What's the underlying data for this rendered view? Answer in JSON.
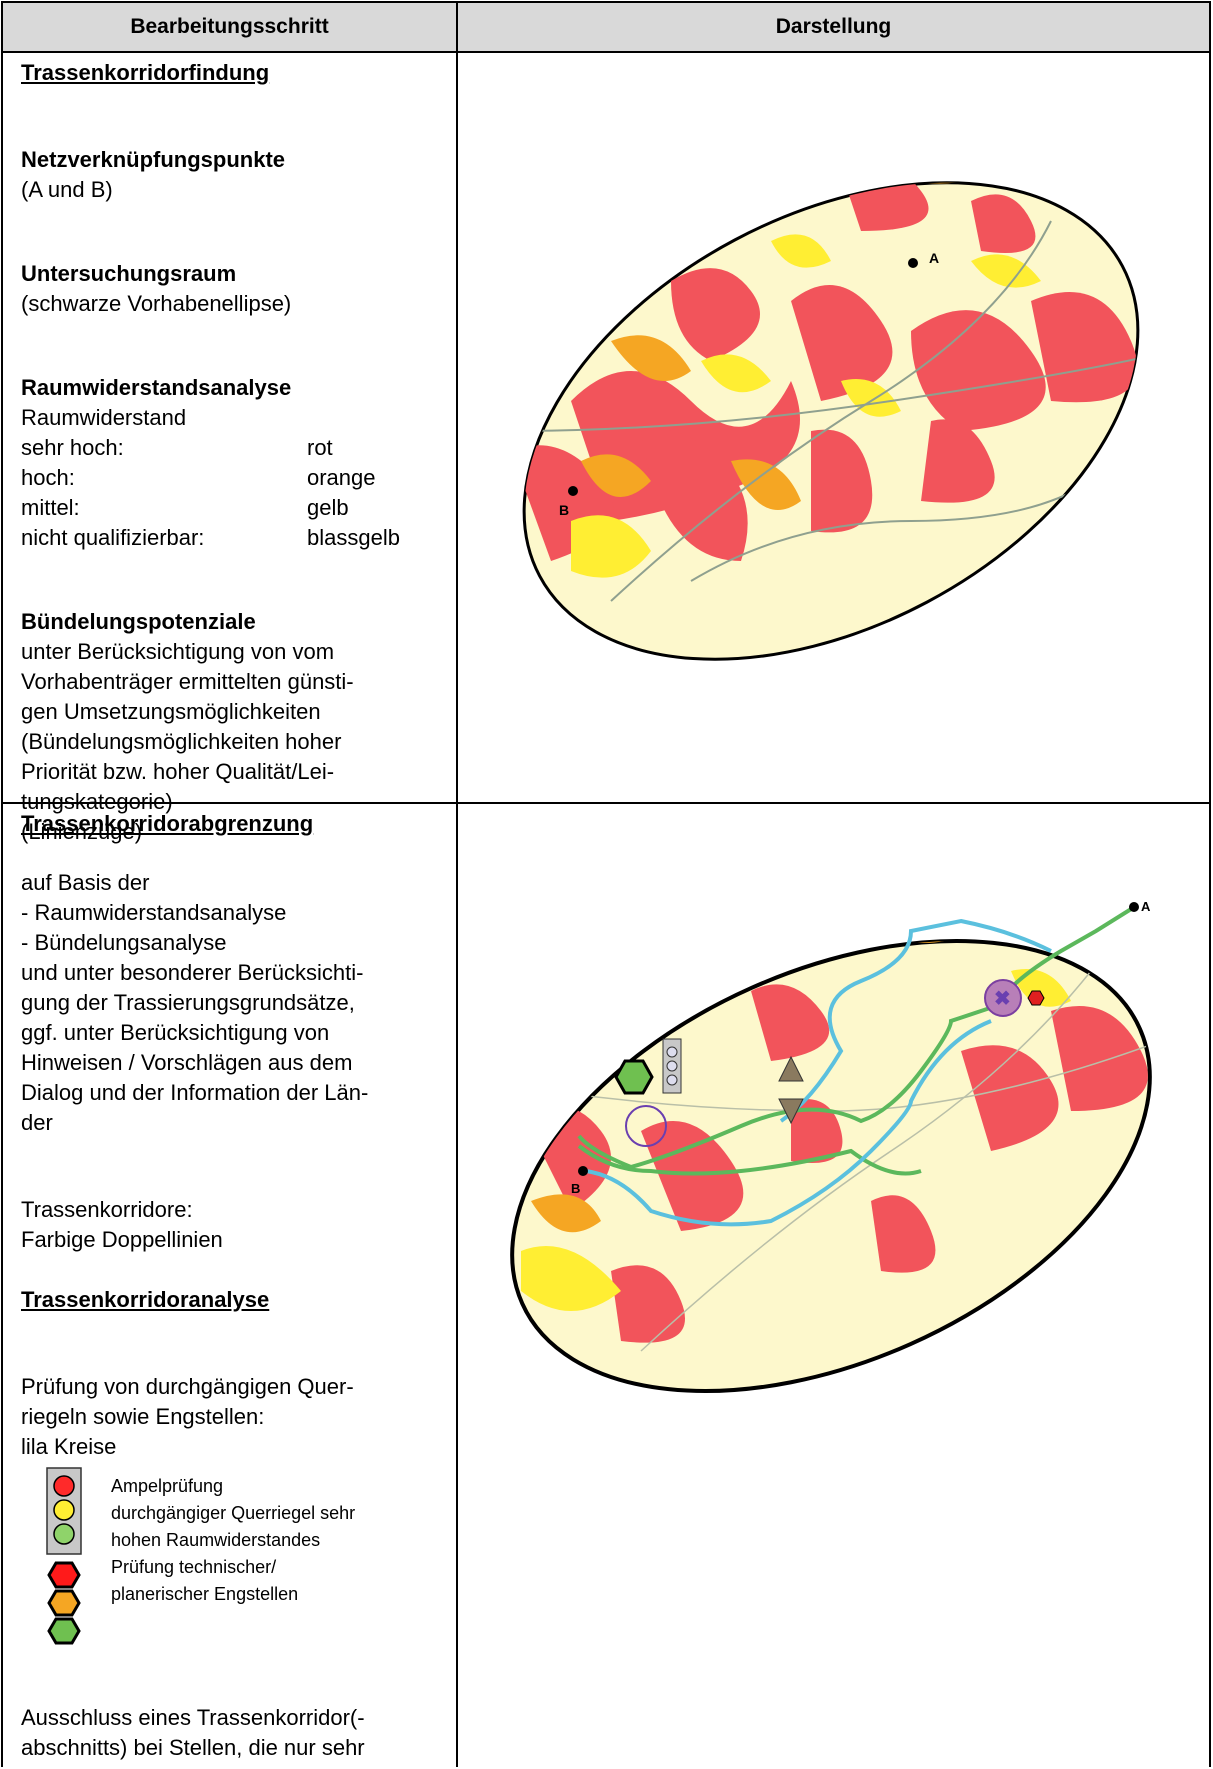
{
  "header": {
    "col1": "Bearbeitungsschritt",
    "col2": "Darstellung"
  },
  "row1": {
    "title": "Trassenkorridorfindung",
    "nvp_heading": "Netzverknüpfungspunkte",
    "nvp_text": "(A und B)",
    "ur_heading": "Untersuchungsraum",
    "ur_text": "(schwarze Vorhabenellipse)",
    "rwa_heading": "Raumwiderstandsanalyse",
    "rw_label": "Raumwiderstand",
    "levels": [
      {
        "label": "sehr hoch:",
        "value": "rot"
      },
      {
        "label": "hoch:",
        "value": "orange"
      },
      {
        "label": "mittel:",
        "value": "gelb"
      },
      {
        "label": "nicht qualifizierbar:",
        "value": "blassgelb"
      }
    ],
    "bp_heading": "Bündelungspotenziale",
    "bp_lines": [
      "unter Berücksichtigung von vom",
      "Vorhabenträger ermittelten günsti-",
      "gen Umsetzungsmöglichkeiten",
      "(Bündelungsmöglichkeiten hoher",
      "Priorität bzw. hoher Qualität/Lei-",
      "tungskategorie)",
      "(Linienzüge)"
    ],
    "map_labels": {
      "a": "A",
      "b": "B"
    }
  },
  "row2": {
    "title": "Trassenkorridorabgrenzung",
    "basis_lines": [
      "auf Basis der",
      "- Raumwiderstandsanalyse",
      "- Bündelungsanalyse",
      "und unter besonderer Berücksichti-",
      "gung der Trassierungsgrundsätze,",
      "ggf. unter Berücksichtigung von",
      "Hinweisen / Vorschlägen aus dem",
      "Dialog und der Information der Län-",
      "der"
    ],
    "tk_lines": [
      "Trassenkorridore:",
      "Farbige Doppellinien"
    ],
    "analysis_title": "Trassenkorridoranalyse",
    "pruefung_lines": [
      "Prüfung von durchgängigen Quer-",
      "riegeln sowie Engstellen:",
      "lila Kreise"
    ],
    "legend_lines": [
      "Ampelprüfung",
      "durchgängiger Querriegel sehr",
      "hohen Raumwiderstandes",
      "Prüfung technischer/",
      "planerischer Engstellen"
    ],
    "ausschluss_lines": [
      "Ausschluss eines Trassenkorridor(-",
      "abschnitts) bei Stellen, die nur sehr"
    ],
    "map_labels": {
      "a": "A",
      "b": "B"
    }
  },
  "colors": {
    "sehr_hoch": "#f2545b",
    "hoch": "#f5a623",
    "mittel": "#ffee33",
    "blassgelb": "#fdf8cc",
    "corridor_blue": "#5bc0de",
    "corridor_green": "#5cb85c",
    "lila": "#7b3fa0"
  }
}
